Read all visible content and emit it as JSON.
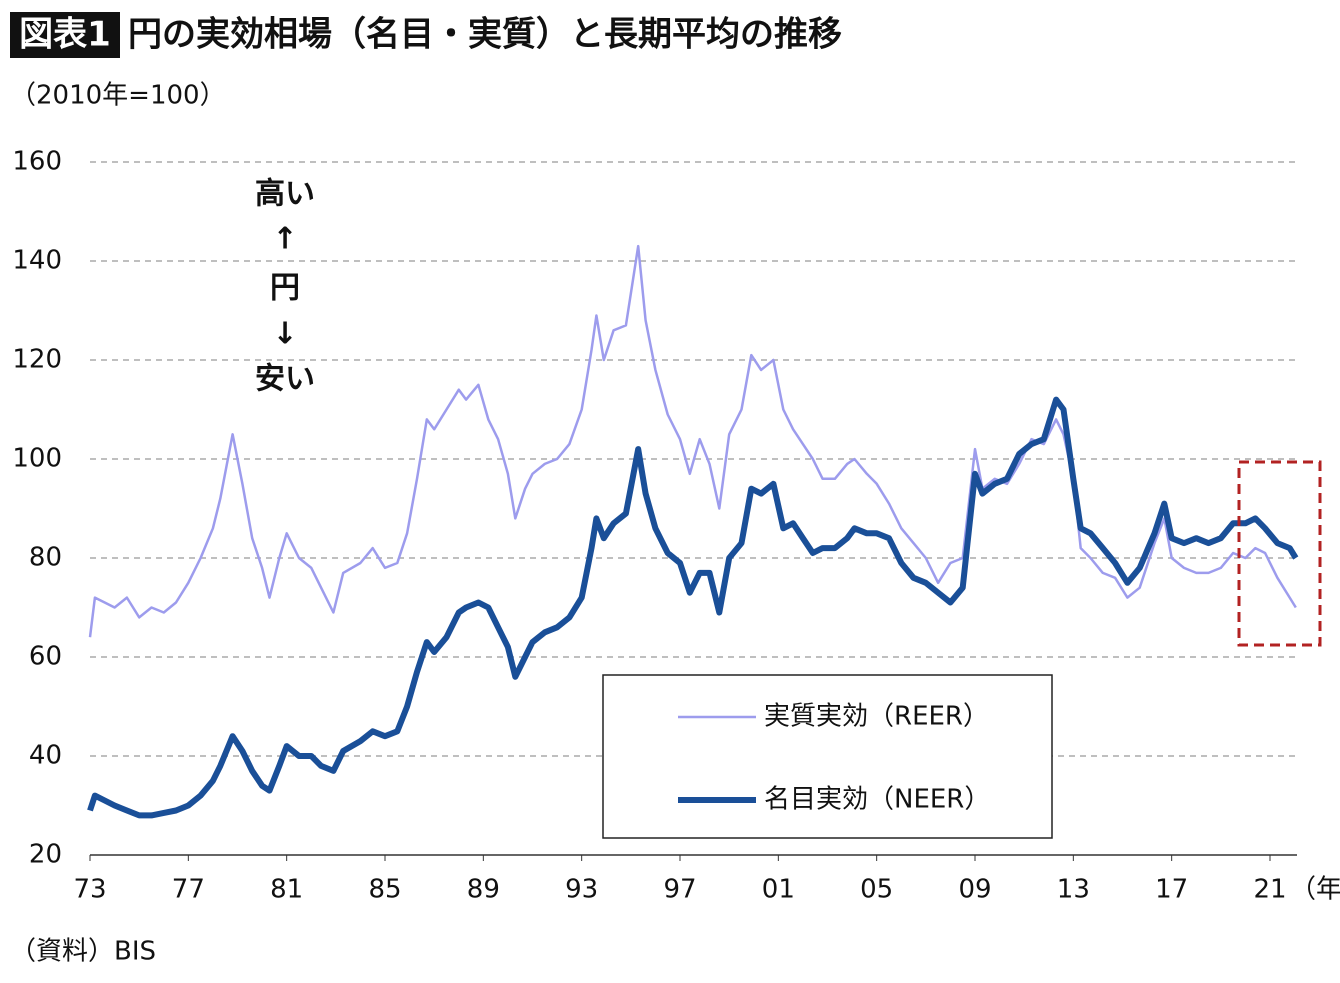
{
  "chart_data": {
    "type": "line",
    "title_label": "図表1",
    "title": "円の実効相場（名目・実質）と長期平均の推移",
    "y_label": "（2010年=100）",
    "x_label": "（年）",
    "source": "（資料）BIS",
    "annotations": [
      "高い",
      "↑",
      "円",
      "↓",
      "安い"
    ],
    "x": [
      1973,
      1973.2,
      1973.6,
      1974,
      1974.5,
      1975,
      1975.5,
      1976,
      1976.5,
      1977,
      1977.5,
      1978,
      1978.3,
      1978.8,
      1979.2,
      1979.6,
      1980,
      1980.3,
      1980.7,
      1981,
      1981.5,
      1982,
      1982.4,
      1982.9,
      1983.3,
      1984,
      1984.5,
      1985,
      1985.5,
      1985.9,
      1986.3,
      1986.7,
      1987,
      1987.5,
      1988,
      1988.3,
      1988.8,
      1989.2,
      1989.6,
      1990,
      1990.3,
      1990.7,
      1991,
      1991.5,
      1992,
      1992.5,
      1993,
      1993.4,
      1993.6,
      1993.9,
      1994.3,
      1994.8,
      1995.3,
      1995.6,
      1996,
      1996.5,
      1997,
      1997.4,
      1997.8,
      1998.2,
      1998.6,
      1999,
      1999.5,
      1999.9,
      2000.3,
      2000.8,
      2001.2,
      2001.6,
      2002,
      2002.4,
      2002.8,
      2003.3,
      2003.8,
      2004.1,
      2004.6,
      2005,
      2005.5,
      2006,
      2006.5,
      2007,
      2007.5,
      2008,
      2008.5,
      2009,
      2009.3,
      2009.8,
      2010.3,
      2010.8,
      2011.3,
      2011.8,
      2012.3,
      2012.6,
      2013,
      2013.3,
      2013.7,
      2014.2,
      2014.7,
      2015.2,
      2015.7,
      2016.3,
      2016.7,
      2017,
      2017.5,
      2018,
      2018.5,
      2019,
      2019.5,
      2020,
      2020.4,
      2020.8,
      2021.3,
      2021.8,
      2022.05
    ],
    "series": [
      {
        "name": "実質実効（REER）",
        "color": "#9d9ced",
        "width": 2.5,
        "values": [
          64,
          72,
          71,
          70,
          72,
          68,
          70,
          69,
          71,
          75,
          80,
          86,
          92,
          105,
          95,
          84,
          78,
          72,
          80,
          85,
          80,
          78,
          74,
          69,
          77,
          79,
          82,
          78,
          79,
          85,
          96,
          108,
          106,
          110,
          114,
          112,
          115,
          108,
          104,
          97,
          88,
          94,
          97,
          99,
          100,
          103,
          110,
          122,
          129,
          120,
          126,
          127,
          143,
          128,
          118,
          109,
          104,
          97,
          104,
          99,
          90,
          105,
          110,
          121,
          118,
          120,
          110,
          106,
          103,
          100,
          96,
          96,
          99,
          100,
          97,
          95,
          91,
          86,
          83,
          80,
          75,
          79,
          80,
          102,
          94,
          96,
          95,
          99,
          104,
          103,
          108,
          105,
          96,
          82,
          80,
          77,
          76,
          72,
          74,
          83,
          88,
          80,
          78,
          77,
          77,
          78,
          81,
          80,
          82,
          81,
          76,
          72,
          70
        ]
      },
      {
        "name": "名目実効（NEER）",
        "color": "#1a4f98",
        "width": 6,
        "values": [
          29,
          32,
          31,
          30,
          29,
          28,
          28,
          28.5,
          29,
          30,
          32,
          35,
          38,
          44,
          41,
          37,
          34,
          33,
          38,
          42,
          40,
          40,
          38,
          37,
          41,
          43,
          45,
          44,
          45,
          50,
          57,
          63,
          61,
          64,
          69,
          70,
          71,
          70,
          66,
          62,
          56,
          60,
          63,
          65,
          66,
          68,
          72,
          82,
          88,
          84,
          87,
          89,
          102,
          93,
          86,
          81,
          79,
          73,
          77,
          77,
          69,
          80,
          83,
          94,
          93,
          95,
          86,
          87,
          84,
          81,
          82,
          82,
          84,
          86,
          85,
          85,
          84,
          79,
          76,
          75,
          73,
          71,
          74,
          97,
          93,
          95,
          96,
          101,
          103,
          104,
          112,
          110,
          96,
          86,
          85,
          82,
          79,
          75,
          78,
          85,
          91,
          84,
          83,
          84,
          83,
          84,
          87,
          87,
          88,
          86,
          83,
          82,
          80
        ]
      }
    ],
    "xlim": [
      1973,
      2021
    ],
    "xticks": [
      {
        "value": 1973,
        "label": "73"
      },
      {
        "value": 1977,
        "label": "77"
      },
      {
        "value": 1981,
        "label": "81"
      },
      {
        "value": 1985,
        "label": "85"
      },
      {
        "value": 1989,
        "label": "89"
      },
      {
        "value": 1993,
        "label": "93"
      },
      {
        "value": 1997,
        "label": "97"
      },
      {
        "value": 2001,
        "label": "01"
      },
      {
        "value": 2005,
        "label": "05"
      },
      {
        "value": 2009,
        "label": "09"
      },
      {
        "value": 2013,
        "label": "13"
      },
      {
        "value": 2017,
        "label": "17"
      },
      {
        "value": 2021,
        "label": "21"
      }
    ],
    "ylim": [
      20,
      160
    ],
    "yticks": [
      20,
      40,
      60,
      80,
      100,
      120,
      140,
      160
    ],
    "grid": true
  }
}
